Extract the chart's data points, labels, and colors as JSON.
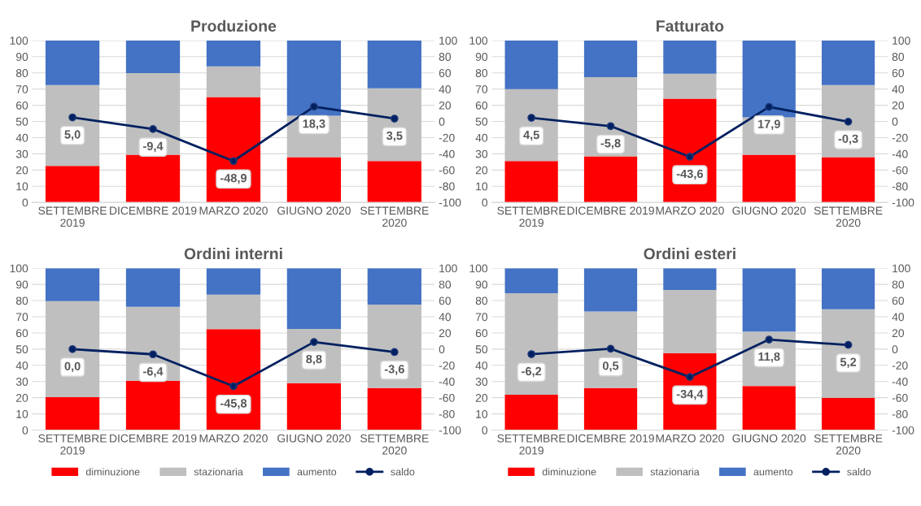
{
  "chart_data": [
    {
      "type": "bar",
      "title": "Produzione",
      "stacked": true,
      "categories": [
        "SETTEMBRE\n2019",
        "DICEMBRE 2019",
        "MARZO 2020",
        "GIUGNO 2020",
        "SETTEMBRE\n2020"
      ],
      "series": [
        {
          "color": "#ff0000",
          "values": [
            22.5,
            29.5,
            65,
            28,
            25.5
          ]
        },
        {
          "color": "#bfbfbf",
          "values": [
            50,
            50.4,
            19,
            25.5,
            45
          ]
        },
        {
          "color": "#4472c4",
          "values": [
            27.5,
            20.1,
            16,
            46.5,
            29.5
          ]
        },
        {
          "type": "line",
          "axis": "y2",
          "color": "#002060",
          "marker": "circle",
          "values": [
            5.0,
            -9.4,
            -48.9,
            18.3,
            3.5
          ],
          "value_labels": [
            "5,0",
            "-9,4",
            "-48,9",
            "18,3",
            "3,5"
          ]
        }
      ],
      "ylim": [
        0,
        100
      ],
      "yticks": [
        0,
        10,
        20,
        30,
        40,
        50,
        60,
        70,
        80,
        90,
        100
      ],
      "y2lim": [
        -100,
        100
      ],
      "y2ticks": [
        -100,
        -80,
        -60,
        -40,
        -20,
        0,
        20,
        40,
        60,
        80,
        100
      ],
      "grid": "y"
    },
    {
      "type": "bar",
      "title": "Fatturato",
      "stacked": true,
      "categories": [
        "SETTEMBRE\n2019",
        "DICEMBRE 2019",
        "MARZO 2020",
        "GIUGNO 2020",
        "SETTEMBRE\n2020"
      ],
      "series": [
        {
          "color": "#ff0000",
          "values": [
            25.5,
            28.5,
            64,
            29.5,
            28
          ]
        },
        {
          "color": "#bfbfbf",
          "values": [
            44.5,
            48.8,
            15.5,
            23,
            44.5
          ]
        },
        {
          "color": "#4472c4",
          "values": [
            30,
            22.7,
            20.5,
            47.5,
            27.5
          ]
        },
        {
          "type": "line",
          "axis": "y2",
          "color": "#002060",
          "marker": "circle",
          "values": [
            4.5,
            -5.8,
            -43.6,
            17.9,
            -0.3
          ],
          "value_labels": [
            "4,5",
            "-5,8",
            "-43,6",
            "17,9",
            "-0,3"
          ]
        }
      ],
      "ylim": [
        0,
        100
      ],
      "yticks": [
        0,
        10,
        20,
        30,
        40,
        50,
        60,
        70,
        80,
        90,
        100
      ],
      "y2lim": [
        -100,
        100
      ],
      "y2ticks": [
        -100,
        -80,
        -60,
        -40,
        -20,
        0,
        20,
        40,
        60,
        80,
        100
      ],
      "grid": "y"
    },
    {
      "type": "bar",
      "title": "Ordini interni",
      "stacked": true,
      "legend": "bottom",
      "categories": [
        "SETTEMBRE\n2019",
        "DICEMBRE 2019",
        "MARZO 2020",
        "GIUGNO 2020",
        "SETTEMBRE\n2020"
      ],
      "series": [
        {
          "name": "diminuzione",
          "color": "#ff0000",
          "values": [
            20.3,
            30.5,
            62.3,
            29,
            26
          ]
        },
        {
          "name": "stazionaria",
          "color": "#bfbfbf",
          "values": [
            59.4,
            45.7,
            21.4,
            33.5,
            51.5
          ]
        },
        {
          "name": "aumento",
          "color": "#4472c4",
          "values": [
            20.3,
            23.8,
            16.3,
            37.5,
            22.5
          ]
        },
        {
          "name": "saldo",
          "type": "line",
          "axis": "y2",
          "color": "#002060",
          "marker": "circle",
          "values": [
            0.0,
            -6.4,
            -45.8,
            8.8,
            -3.6
          ],
          "value_labels": [
            "0,0",
            "-6,4",
            "-45,8",
            "8,8",
            "-3,6"
          ]
        }
      ],
      "ylim": [
        0,
        100
      ],
      "yticks": [
        0,
        10,
        20,
        30,
        40,
        50,
        60,
        70,
        80,
        90,
        100
      ],
      "y2lim": [
        -100,
        100
      ],
      "y2ticks": [
        -100,
        -80,
        -60,
        -40,
        -20,
        0,
        20,
        40,
        60,
        80,
        100
      ],
      "grid": "y"
    },
    {
      "type": "bar",
      "title": "Ordini esteri",
      "stacked": true,
      "legend": "bottom",
      "categories": [
        "SETTEMBRE\n2019",
        "DICEMBRE 2019",
        "MARZO 2020",
        "GIUGNO 2020",
        "SETTEMBRE\n2020"
      ],
      "series": [
        {
          "name": "diminuzione",
          "color": "#ff0000",
          "values": [
            21.8,
            26,
            47.5,
            27.2,
            20
          ]
        },
        {
          "name": "stazionaria",
          "color": "#bfbfbf",
          "values": [
            62.7,
            47.3,
            39,
            33.6,
            54.7
          ]
        },
        {
          "name": "aumento",
          "color": "#4472c4",
          "values": [
            15.5,
            26.7,
            13.5,
            39.2,
            25.3
          ]
        },
        {
          "name": "saldo",
          "type": "line",
          "axis": "y2",
          "color": "#002060",
          "marker": "circle",
          "values": [
            -6.2,
            0.5,
            -34.4,
            11.8,
            5.2
          ],
          "value_labels": [
            "-6,2",
            "0,5",
            "-34,4",
            "11,8",
            "5,2"
          ]
        }
      ],
      "ylim": [
        0,
        100
      ],
      "yticks": [
        0,
        10,
        20,
        30,
        40,
        50,
        60,
        70,
        80,
        90,
        100
      ],
      "y2lim": [
        -100,
        100
      ],
      "y2ticks": [
        -100,
        -80,
        -60,
        -40,
        -20,
        0,
        20,
        40,
        60,
        80,
        100
      ],
      "grid": "y"
    }
  ]
}
